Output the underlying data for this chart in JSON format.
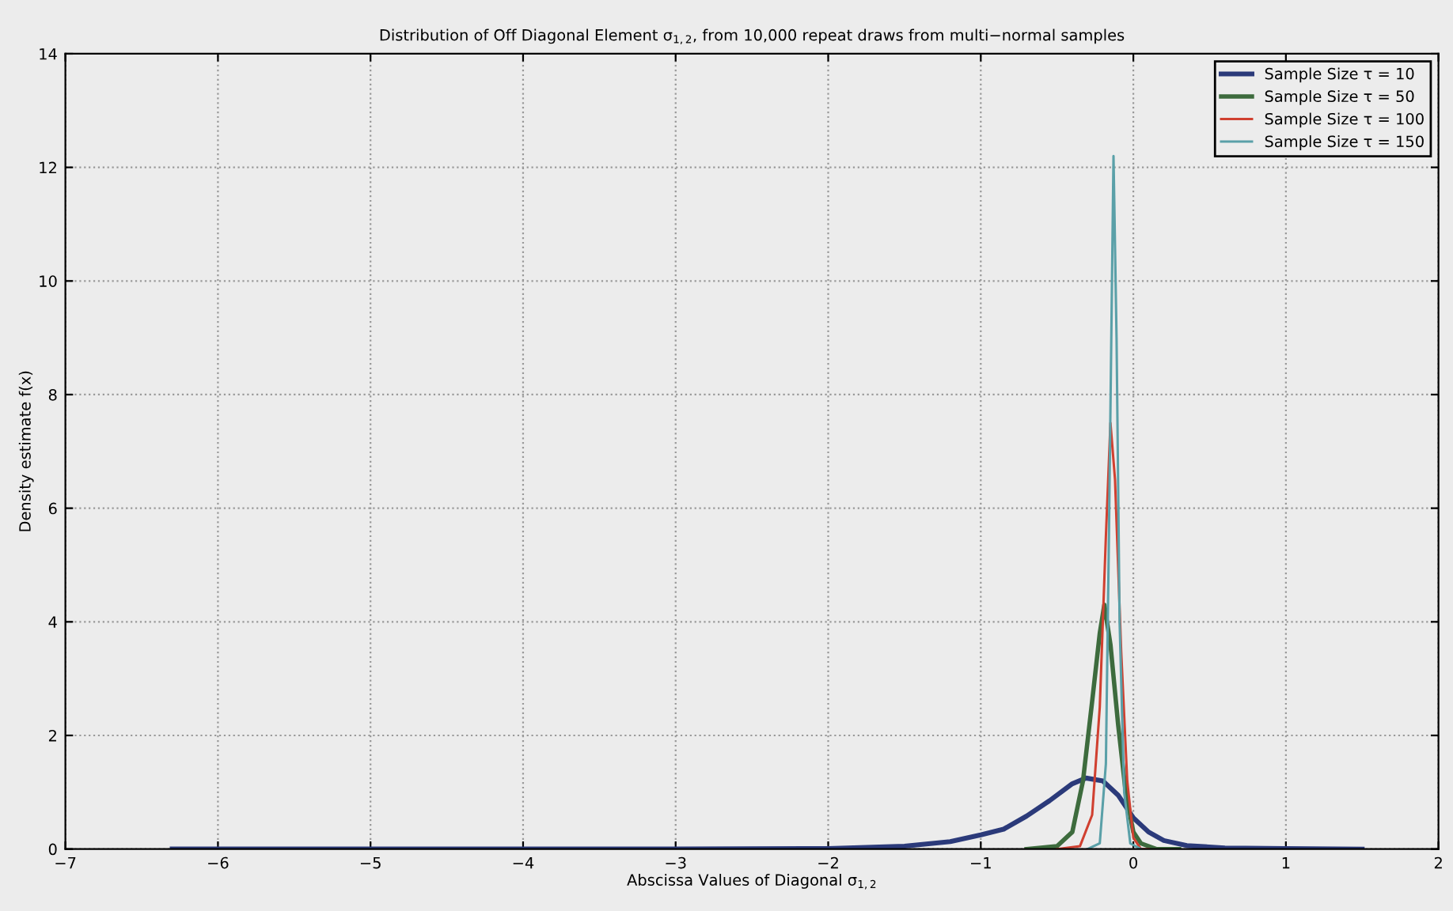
{
  "chart_data": {
    "type": "line",
    "title": "Distribution of Off Diagonal Element σ$_{1,2}$, from 10,000 repeat draws from multi−normal samples",
    "xlabel": "Abscissa Values of Diagonal σ$_{1,2}$",
    "ylabel": "Density estimate f(x)",
    "xlim": [
      -7,
      2
    ],
    "ylim": [
      0,
      14
    ],
    "xticks": [
      -7,
      -6,
      -5,
      -4,
      -3,
      -2,
      -1,
      0,
      1,
      2
    ],
    "yticks": [
      0,
      2,
      4,
      6,
      8,
      10,
      12,
      14
    ],
    "grid": true,
    "legend": "top right",
    "line_style": "solid",
    "marker": "none",
    "series": [
      {
        "name": "Sample Size τ = 10",
        "color": "#2b3a7a",
        "x": [
          -6.3,
          -3,
          -2,
          -1.5,
          -1.2,
          -1,
          -0.85,
          -0.7,
          -0.55,
          -0.4,
          -0.31,
          -0.2,
          -0.1,
          0,
          0.1,
          0.2,
          0.35,
          0.6,
          1,
          1.5
        ],
        "values": [
          0,
          0,
          0.01,
          0.05,
          0.13,
          0.25,
          0.35,
          0.58,
          0.85,
          1.15,
          1.25,
          1.2,
          0.95,
          0.55,
          0.3,
          0.15,
          0.06,
          0.02,
          0.01,
          0
        ]
      },
      {
        "name": "Sample Size τ = 50",
        "color": "#3d6b3d",
        "x": [
          -0.7,
          -0.5,
          -0.4,
          -0.33,
          -0.27,
          -0.22,
          -0.19,
          -0.15,
          -0.1,
          -0.05,
          0,
          0.05,
          0.15,
          0.3
        ],
        "values": [
          0,
          0.05,
          0.3,
          1.2,
          2.6,
          3.8,
          4.3,
          3.6,
          2.2,
          1.0,
          0.3,
          0.1,
          0,
          0
        ]
      },
      {
        "name": "Sample Size τ = 100",
        "color": "#d04030",
        "x": [
          -0.5,
          -0.35,
          -0.27,
          -0.22,
          -0.18,
          -0.15,
          -0.12,
          -0.08,
          -0.04,
          0,
          0.05,
          0.1
        ],
        "values": [
          0,
          0.05,
          0.6,
          2.5,
          5.5,
          7.5,
          6.5,
          3.5,
          1.2,
          0.2,
          0,
          0
        ]
      },
      {
        "name": "Sample Size τ = 150",
        "color": "#5aa0a8",
        "x": [
          -0.3,
          -0.22,
          -0.18,
          -0.16,
          -0.14,
          -0.13,
          -0.11,
          -0.09,
          -0.06,
          -0.02,
          0.05
        ],
        "values": [
          0,
          0.1,
          1.5,
          5.5,
          10,
          12.2,
          9,
          4,
          1.0,
          0.1,
          0
        ]
      }
    ]
  }
}
